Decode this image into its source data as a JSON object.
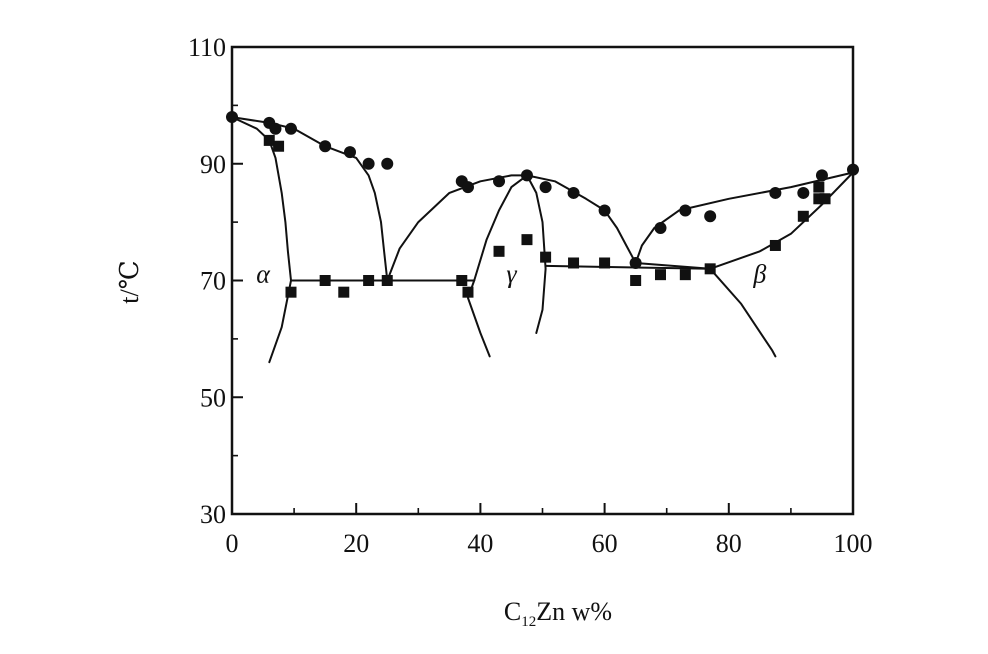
{
  "chart_data": {
    "type": "scatter",
    "title": "",
    "xlabel": {
      "main": "C",
      "sub": "12",
      "rest": "Zn w%"
    },
    "ylabel": "t/℃",
    "xlim": [
      0,
      100
    ],
    "ylim": [
      30,
      110
    ],
    "x_ticks": [
      0,
      20,
      40,
      60,
      80,
      100
    ],
    "x_tick_labels": [
      "0",
      "20",
      "40",
      "60",
      "80",
      "100"
    ],
    "y_ticks": [
      30,
      50,
      70,
      90,
      110
    ],
    "y_tick_labels": [
      "30",
      "50",
      "70",
      "90",
      "110"
    ],
    "grid": false,
    "legend": "none",
    "colors": {
      "ink": "#111111",
      "background": "#ffffff"
    },
    "series": [
      {
        "marker": "circle",
        "points": [
          [
            0,
            98
          ],
          [
            6,
            97
          ],
          [
            7,
            96
          ],
          [
            9.5,
            96
          ],
          [
            15,
            93
          ],
          [
            19,
            92
          ],
          [
            22,
            90
          ],
          [
            25,
            90
          ],
          [
            37,
            87
          ],
          [
            38,
            86
          ],
          [
            43,
            87
          ],
          [
            47.5,
            88
          ],
          [
            50.5,
            86
          ],
          [
            55,
            85
          ],
          [
            60,
            82
          ],
          [
            65,
            73
          ],
          [
            69,
            79
          ],
          [
            73,
            82
          ],
          [
            77,
            81
          ],
          [
            87.5,
            85
          ],
          [
            92,
            85
          ],
          [
            95,
            88
          ],
          [
            100,
            89
          ]
        ]
      },
      {
        "marker": "square",
        "points": [
          [
            6,
            94
          ],
          [
            7.5,
            93
          ],
          [
            9.5,
            68
          ],
          [
            15,
            70
          ],
          [
            18,
            68
          ],
          [
            22,
            70
          ],
          [
            25,
            70
          ],
          [
            37,
            70
          ],
          [
            38,
            68
          ],
          [
            43,
            75
          ],
          [
            47.5,
            77
          ],
          [
            50.5,
            74
          ],
          [
            55,
            73
          ],
          [
            60,
            73
          ],
          [
            65,
            70
          ],
          [
            69,
            71
          ],
          [
            73,
            71
          ],
          [
            77,
            72
          ],
          [
            87.5,
            76
          ],
          [
            92,
            81
          ],
          [
            94.5,
            84
          ],
          [
            95.5,
            84
          ],
          [
            94.5,
            86
          ]
        ]
      }
    ],
    "phase_boundaries": [
      [
        [
          0,
          98
        ],
        [
          6,
          97
        ],
        [
          10,
          96
        ],
        [
          15,
          93
        ],
        [
          20,
          91
        ],
        [
          22,
          88
        ],
        [
          23,
          85
        ],
        [
          24,
          80
        ],
        [
          24.5,
          75
        ],
        [
          25,
          70
        ]
      ],
      [
        [
          0,
          98
        ],
        [
          4,
          96
        ],
        [
          6,
          94
        ],
        [
          7,
          91
        ],
        [
          8,
          85
        ],
        [
          8.6,
          80
        ],
        [
          9,
          75
        ],
        [
          9.5,
          70
        ]
      ],
      [
        [
          9.5,
          70
        ],
        [
          8,
          62
        ],
        [
          6,
          56
        ]
      ],
      [
        [
          9.5,
          70
        ],
        [
          39,
          70
        ]
      ],
      [
        [
          25,
          70
        ],
        [
          27,
          75.5
        ],
        [
          30,
          80
        ],
        [
          35,
          85
        ],
        [
          40,
          87
        ],
        [
          45,
          88
        ],
        [
          47.5,
          88
        ],
        [
          52,
          87
        ],
        [
          57,
          84
        ],
        [
          60,
          82
        ],
        [
          62,
          79
        ],
        [
          63.5,
          76
        ],
        [
          65,
          73
        ]
      ],
      [
        [
          39,
          70
        ],
        [
          38,
          67
        ],
        [
          40,
          61
        ],
        [
          41.5,
          57
        ]
      ],
      [
        [
          39,
          70
        ],
        [
          41,
          77
        ],
        [
          43,
          82
        ],
        [
          45,
          86
        ],
        [
          47.5,
          88
        ]
      ],
      [
        [
          47.5,
          88
        ],
        [
          49,
          85
        ],
        [
          50,
          80
        ],
        [
          50.5,
          72
        ],
        [
          50,
          65
        ],
        [
          49,
          61
        ]
      ],
      [
        [
          50.5,
          72.5
        ],
        [
          77,
          72
        ]
      ],
      [
        [
          77,
          72
        ],
        [
          82,
          66
        ],
        [
          87,
          58
        ],
        [
          87.5,
          57
        ]
      ],
      [
        [
          65,
          73
        ],
        [
          66,
          76
        ],
        [
          68,
          79
        ],
        [
          72,
          82
        ],
        [
          80,
          84
        ],
        [
          90,
          86
        ],
        [
          100,
          88.5
        ]
      ],
      [
        [
          65,
          73
        ],
        [
          77,
          72
        ],
        [
          85,
          75
        ],
        [
          90,
          78
        ],
        [
          95,
          83
        ],
        [
          100,
          88.5
        ]
      ]
    ],
    "annotations": [
      {
        "text": "α",
        "x": 5,
        "y": 70
      },
      {
        "text": "γ",
        "x": 45,
        "y": 70
      },
      {
        "text": "β",
        "x": 85,
        "y": 70
      }
    ]
  }
}
